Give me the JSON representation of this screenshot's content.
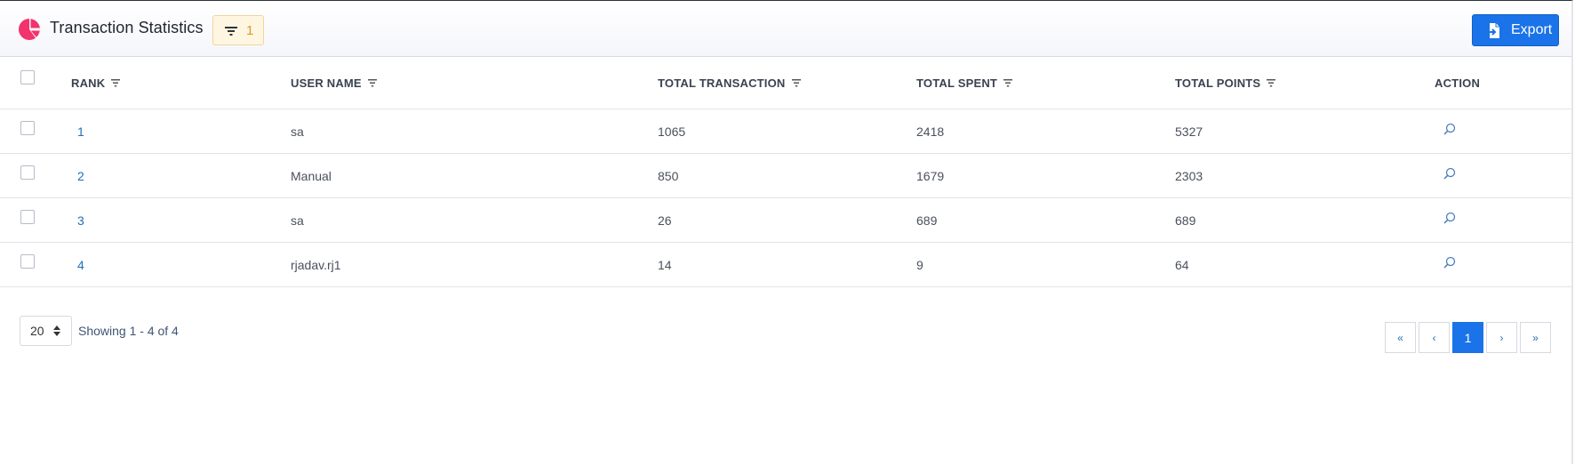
{
  "header": {
    "title": "Transaction Statistics",
    "filter_count": "1",
    "export_label": "Export",
    "icons": {
      "logo": "pie-chart-icon",
      "filter": "filter-icon",
      "export": "file-export-icon"
    },
    "colors": {
      "logo": "#f2336d",
      "accent": "#1a73e8",
      "badge_bg": "#fff6e2",
      "badge_text": "#d39c2a"
    }
  },
  "table": {
    "columns": {
      "rank": "RANK",
      "user": "USER NAME",
      "transaction": "TOTAL TRANSACTION",
      "spent": "TOTAL SPENT",
      "points": "TOTAL POINTS",
      "action": "ACTION"
    },
    "rows": [
      {
        "rank": "1",
        "user": "sa",
        "transaction": "1065",
        "spent": "2418",
        "points": "5327"
      },
      {
        "rank": "2",
        "user": "Manual",
        "transaction": "850",
        "spent": "1679",
        "points": "2303"
      },
      {
        "rank": "3",
        "user": "sa",
        "transaction": "26",
        "spent": "689",
        "points": "689"
      },
      {
        "rank": "4",
        "user": "rjadav.rj1",
        "transaction": "14",
        "spent": "9",
        "points": "64"
      }
    ]
  },
  "footer": {
    "page_size": "20",
    "showing": "Showing 1 - 4 of 4",
    "pager": {
      "first": "«",
      "prev": "‹",
      "current": "1",
      "next": "›",
      "last": "»"
    }
  }
}
